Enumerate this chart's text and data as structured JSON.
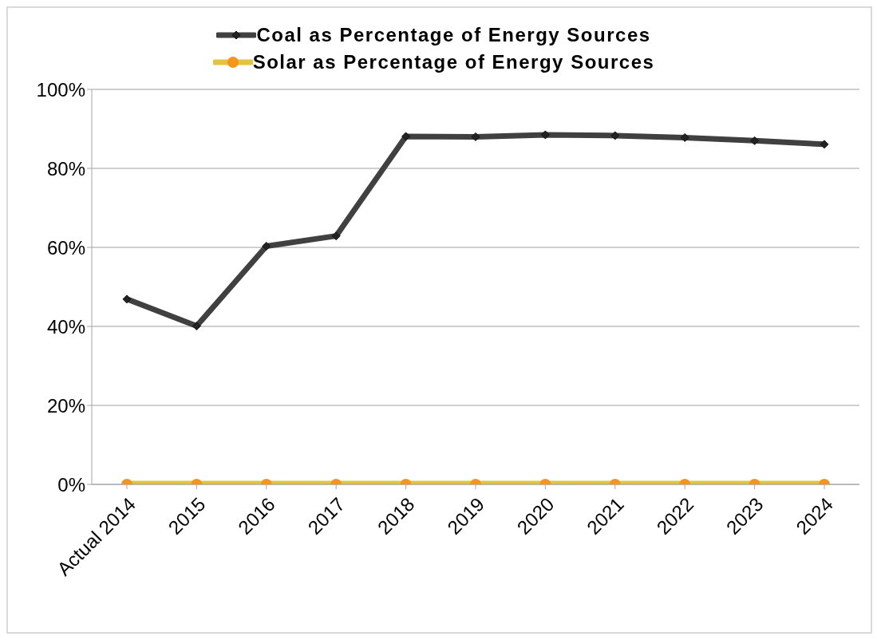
{
  "chart_data": {
    "type": "line",
    "categories": [
      "Actual 2014",
      "2015",
      "2016",
      "2017",
      "2018",
      "2019",
      "2020",
      "2021",
      "2022",
      "2023",
      "2024"
    ],
    "series": [
      {
        "name": "Coal as Percentage of Energy Sources",
        "color": "#404040",
        "marker": "diamond",
        "values": [
          46.9,
          40.1,
          60.3,
          62.9,
          88.1,
          88,
          88.5,
          88.3,
          87.8,
          87,
          86.1
        ]
      },
      {
        "name": "Solar as Percentage of Energy Sources",
        "color": "#e5c33c",
        "marker": "circle",
        "values": [
          0,
          0,
          0,
          0,
          0,
          0,
          0,
          0,
          0,
          0,
          0
        ]
      }
    ],
    "ylim": [
      0,
      100
    ],
    "yticks": [
      {
        "value": 0,
        "label": "0%"
      },
      {
        "value": 20,
        "label": "20%"
      },
      {
        "value": 40,
        "label": "40%"
      },
      {
        "value": 60,
        "label": "60%"
      },
      {
        "value": 80,
        "label": "80%"
      },
      {
        "value": 100,
        "label": "100%"
      }
    ],
    "grid": "y",
    "legend": "top",
    "line_style": "solid"
  }
}
